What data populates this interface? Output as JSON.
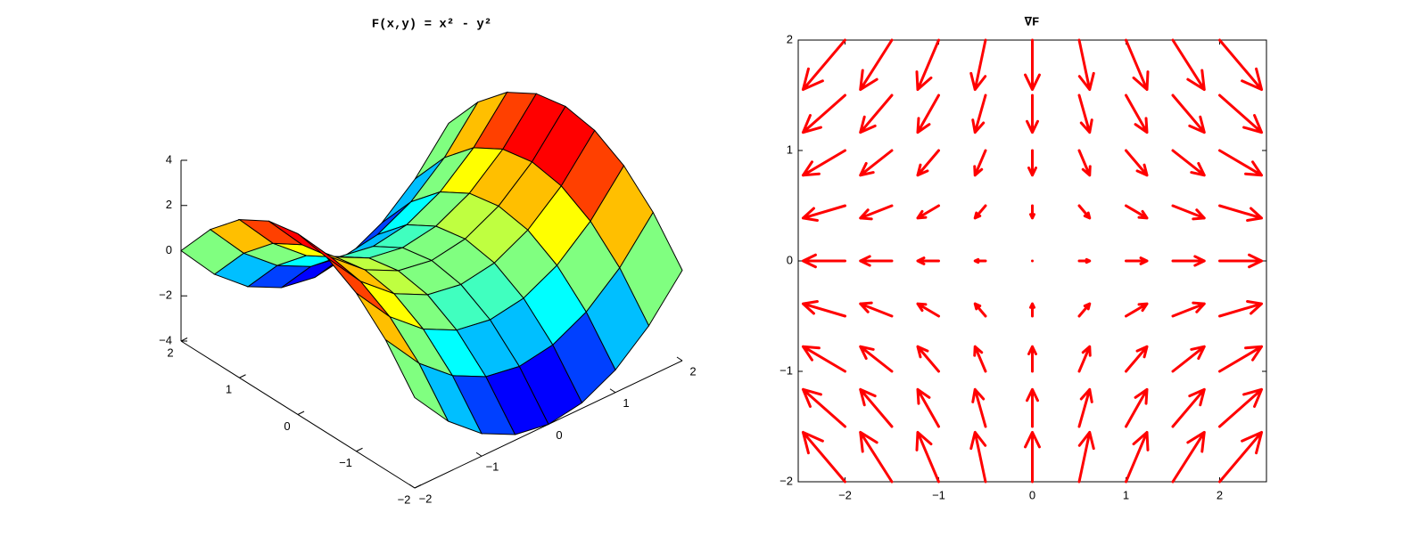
{
  "chart_data": [
    {
      "type": "surface",
      "title": "F(x,y) = x² - y²",
      "colormap": "jet",
      "x": [
        -2,
        -1.5,
        -1,
        -0.5,
        0,
        0.5,
        1,
        1.5,
        2
      ],
      "y": [
        -2,
        -1.5,
        -1,
        -0.5,
        0,
        0.5,
        1,
        1.5,
        2
      ],
      "z": [
        [
          0,
          -1.75,
          -3,
          -3.75,
          -4,
          -3.75,
          -3,
          -1.75,
          0
        ],
        [
          1.75,
          0,
          -1.25,
          -2,
          -2.25,
          -2,
          -1.25,
          0,
          1.75
        ],
        [
          3,
          1.25,
          0,
          -0.75,
          -1,
          -0.75,
          0,
          1.25,
          3
        ],
        [
          3.75,
          2,
          0.75,
          0,
          -0.25,
          0,
          0.75,
          2,
          3.75
        ],
        [
          4,
          2.25,
          1,
          0.25,
          0,
          0.25,
          1,
          2.25,
          4
        ],
        [
          3.75,
          2,
          0.75,
          0,
          -0.25,
          0,
          0.75,
          2,
          3.75
        ],
        [
          3,
          1.25,
          0,
          -0.75,
          -1,
          -0.75,
          0,
          1.25,
          3
        ],
        [
          1.75,
          0,
          -1.25,
          -2,
          -2.25,
          -2,
          -1.25,
          0,
          1.75
        ],
        [
          0,
          -1.75,
          -3,
          -3.75,
          -4,
          -3.75,
          -3,
          -1.75,
          0
        ]
      ],
      "xlim": [
        -2,
        2
      ],
      "ylim": [
        -2,
        2
      ],
      "zlim": [
        -4,
        4
      ],
      "xticks": [
        {
          "value": -2,
          "label": "−2"
        },
        {
          "value": -1,
          "label": "−1"
        },
        0,
        1,
        2
      ],
      "yticks": [
        {
          "value": -2,
          "label": "−2"
        },
        {
          "value": -1,
          "label": "−1"
        },
        0,
        1,
        2
      ],
      "zticks": [
        {
          "value": -4,
          "label": "−4"
        },
        {
          "value": -2,
          "label": "−2"
        },
        0,
        2,
        4
      ]
    },
    {
      "type": "quiver",
      "title": "∇F",
      "color": "#ff0000",
      "x": [
        -2,
        -1.5,
        -1,
        -0.5,
        0,
        0.5,
        1,
        1.5,
        2
      ],
      "y": [
        -2,
        -1.5,
        -1,
        -0.5,
        0,
        0.5,
        1,
        1.5,
        2
      ],
      "u": [
        [
          -4,
          -3,
          -2,
          -1,
          0,
          1,
          2,
          3,
          4
        ],
        [
          -4,
          -3,
          -2,
          -1,
          0,
          1,
          2,
          3,
          4
        ],
        [
          -4,
          -3,
          -2,
          -1,
          0,
          1,
          2,
          3,
          4
        ],
        [
          -4,
          -3,
          -2,
          -1,
          0,
          1,
          2,
          3,
          4
        ],
        [
          -4,
          -3,
          -2,
          -1,
          0,
          1,
          2,
          3,
          4
        ],
        [
          -4,
          -3,
          -2,
          -1,
          0,
          1,
          2,
          3,
          4
        ],
        [
          -4,
          -3,
          -2,
          -1,
          0,
          1,
          2,
          3,
          4
        ],
        [
          -4,
          -3,
          -2,
          -1,
          0,
          1,
          2,
          3,
          4
        ],
        [
          -4,
          -3,
          -2,
          -1,
          0,
          1,
          2,
          3,
          4
        ]
      ],
      "v": [
        [
          4,
          4,
          4,
          4,
          4,
          4,
          4,
          4,
          4
        ],
        [
          3,
          3,
          3,
          3,
          3,
          3,
          3,
          3,
          3
        ],
        [
          2,
          2,
          2,
          2,
          2,
          2,
          2,
          2,
          2
        ],
        [
          1,
          1,
          1,
          1,
          1,
          1,
          1,
          1,
          1
        ],
        [
          0,
          0,
          0,
          0,
          0,
          0,
          0,
          0,
          0
        ],
        [
          -1,
          -1,
          -1,
          -1,
          -1,
          -1,
          -1,
          -1,
          -1
        ],
        [
          -2,
          -2,
          -2,
          -2,
          -2,
          -2,
          -2,
          -2,
          -2
        ],
        [
          -3,
          -3,
          -3,
          -3,
          -3,
          -3,
          -3,
          -3,
          -3
        ],
        [
          -4,
          -4,
          -4,
          -4,
          -4,
          -4,
          -4,
          -4,
          -4
        ]
      ],
      "xlim": [
        -2.5,
        2.5
      ],
      "ylim": [
        -2,
        2
      ],
      "xticks": [
        {
          "value": -2,
          "label": "−2"
        },
        {
          "value": -1,
          "label": "−1"
        },
        0,
        1,
        2
      ],
      "yticks": [
        {
          "value": -2,
          "label": "−2"
        },
        {
          "value": -1,
          "label": "−1"
        },
        0,
        1,
        2
      ]
    }
  ]
}
